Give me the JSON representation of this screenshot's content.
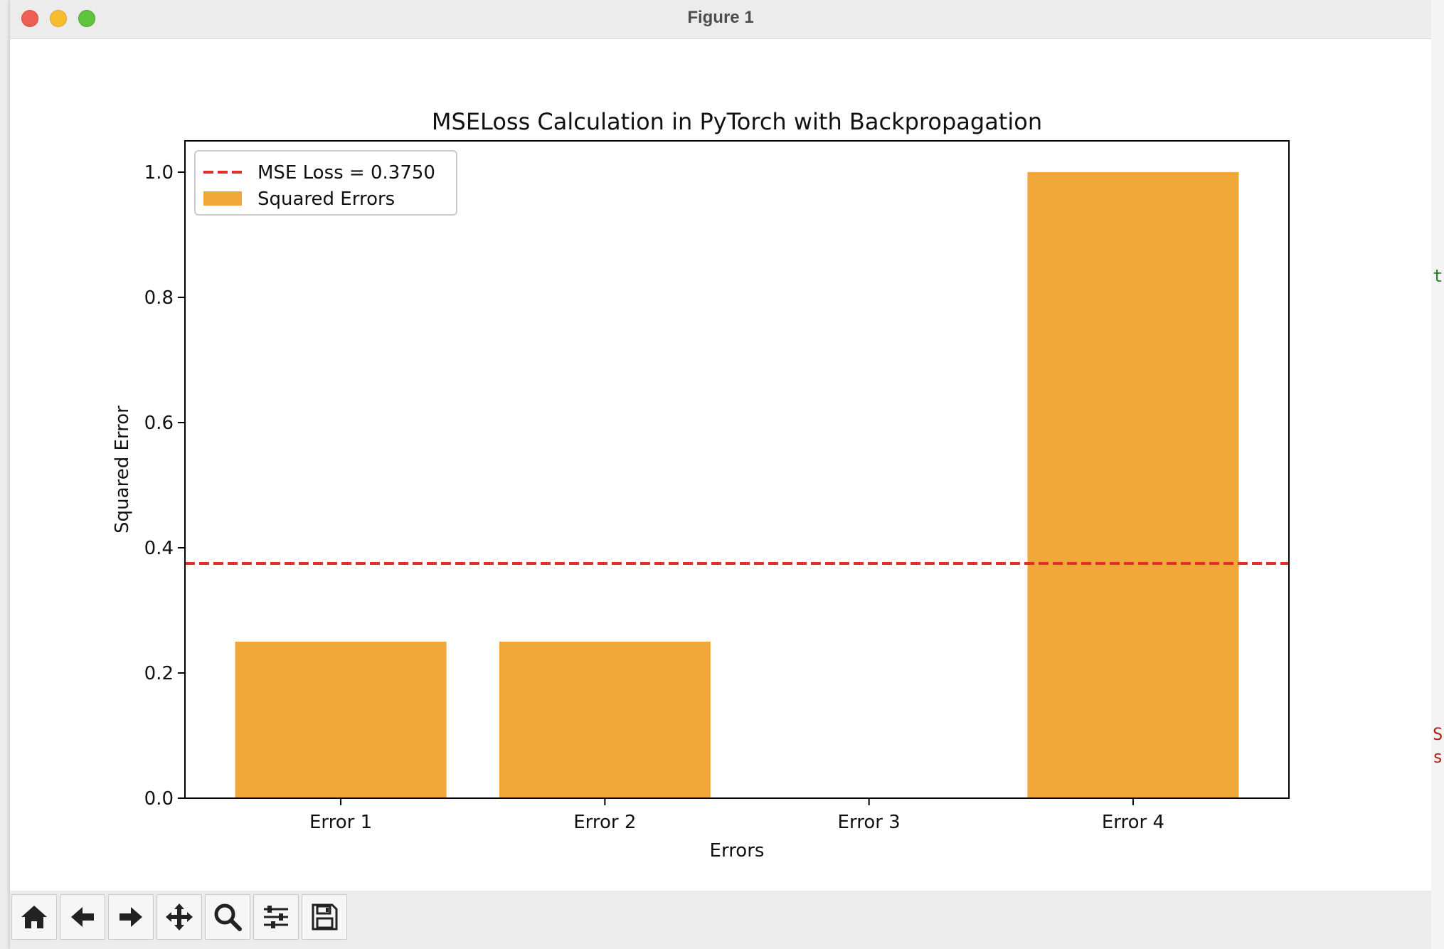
{
  "window": {
    "title": "Figure 1"
  },
  "toolbar": {
    "buttons": [
      {
        "name": "home-button",
        "icon": "home-icon"
      },
      {
        "name": "back-button",
        "icon": "arrow-left-icon"
      },
      {
        "name": "forward-button",
        "icon": "arrow-right-icon"
      },
      {
        "name": "pan-button",
        "icon": "move-icon"
      },
      {
        "name": "zoom-button",
        "icon": "magnifier-icon"
      },
      {
        "name": "configure-subplots-button",
        "icon": "sliders-icon"
      },
      {
        "name": "save-button",
        "icon": "save-icon"
      }
    ]
  },
  "background_app": {
    "chars": [
      "t",
      "S",
      "s"
    ]
  },
  "chart_data": {
    "type": "bar",
    "title": "MSELoss Calculation in PyTorch with Backpropagation",
    "xlabel": "Errors",
    "ylabel": "Squared Error",
    "categories": [
      "Error 1",
      "Error 2",
      "Error 3",
      "Error 4"
    ],
    "series": [
      {
        "name": "Squared Errors",
        "values": [
          0.25,
          0.25,
          0.0,
          1.0
        ],
        "color": "#f0a83a"
      }
    ],
    "reference_line": {
      "label": "MSE Loss = 0.3750",
      "y": 0.375,
      "style": "dashed",
      "color": "#e0302a"
    },
    "ylim": [
      0,
      1.05
    ],
    "yticks": [
      "0.0",
      "0.2",
      "0.4",
      "0.6",
      "0.8",
      "1.0"
    ],
    "grid": false,
    "legend": "upper-left"
  }
}
